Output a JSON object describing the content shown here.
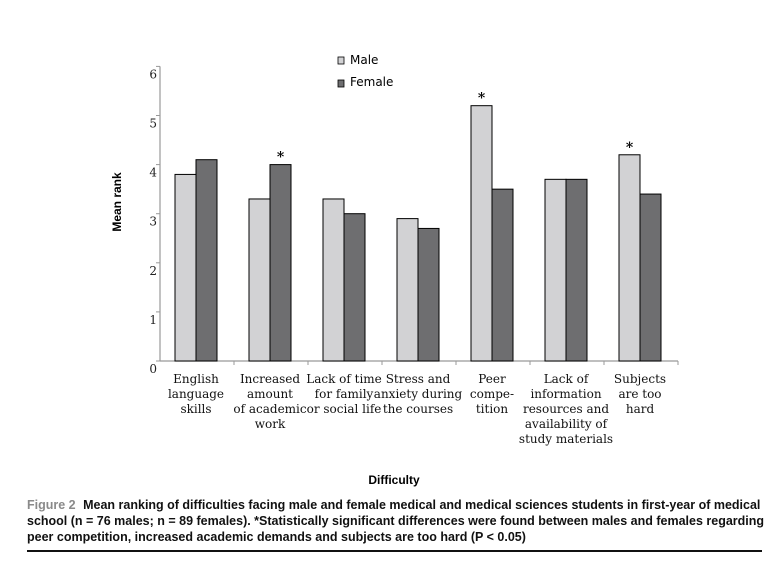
{
  "chart_data": {
    "type": "bar",
    "categories": [
      [
        "English",
        "language",
        "skills"
      ],
      [
        "Increased",
        "amount",
        "of academic",
        "work"
      ],
      [
        "Lack of time",
        "for family",
        "or social life"
      ],
      [
        "Stress and",
        "anxiety during",
        "the courses"
      ],
      [
        "Peer",
        "compe-",
        "tition"
      ],
      [
        "Lack of",
        "information",
        "resources and",
        "availability of",
        "study materials"
      ],
      [
        "Subjects",
        "are too",
        "hard"
      ]
    ],
    "series": [
      {
        "name": "Male",
        "color": "#d2d2d4",
        "values": [
          3.8,
          3.3,
          3.3,
          2.9,
          5.2,
          3.7,
          4.2
        ]
      },
      {
        "name": "Female",
        "color": "#6e6e70",
        "values": [
          4.1,
          4.0,
          3.0,
          2.7,
          3.5,
          3.7,
          3.4
        ]
      }
    ],
    "significance": [
      {
        "category_index": 1,
        "series": "Female",
        "mark": "*"
      },
      {
        "category_index": 4,
        "series": "Male",
        "mark": "*"
      },
      {
        "category_index": 6,
        "series": "Male",
        "mark": "*"
      }
    ],
    "xlabel": "Difficulty",
    "ylabel": "Mean rank",
    "ylim": [
      0,
      6
    ],
    "yticks": [
      "0",
      "1",
      "2",
      "3",
      "4",
      "5",
      "6"
    ],
    "grid": false,
    "legend": "top-center"
  },
  "caption": {
    "figure_label": "Figure 2",
    "text": "Mean ranking of difficulties facing male and female medical and medical sciences students in first-year of medical school (n = 76 males; n = 89 females). *Statistically significant differences were found between males and females regarding peer competition, increased academic demands and subjects are too hard (P < 0.05)"
  }
}
